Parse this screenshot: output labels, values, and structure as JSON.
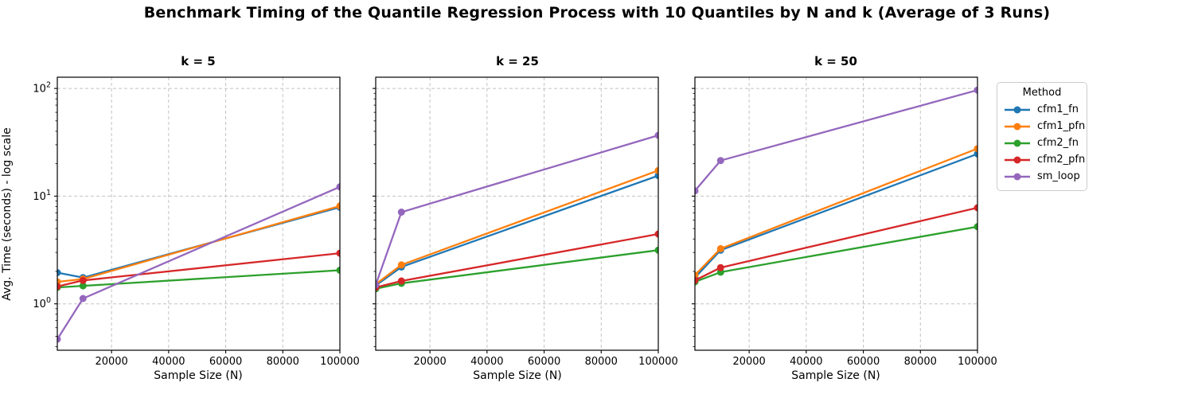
{
  "chart_data": {
    "type": "line",
    "suptitle": "Benchmark Timing of the Quantile Regression Process with 10 Quantiles by N and k (Average of 3 Runs)",
    "xlabel": "Sample Size (N)",
    "ylabel": "Avg. Time (seconds) - log scale",
    "yscale": "log",
    "x": [
      1000,
      10000,
      100000
    ],
    "xlim": [
      1000,
      100000
    ],
    "ylim": [
      0.37,
      128
    ],
    "xticks": [
      20000,
      40000,
      60000,
      80000,
      100000
    ],
    "yticks": [
      1,
      10,
      100
    ],
    "grid": true,
    "grid_style": "dashed",
    "legend": {
      "title": "Method",
      "position": "outside-upper-right"
    },
    "methods": [
      {
        "name": "cfm1_fn",
        "color": "#1f77b4"
      },
      {
        "name": "cfm1_pfn",
        "color": "#ff7f0e"
      },
      {
        "name": "cfm2_fn",
        "color": "#2ca02c"
      },
      {
        "name": "cfm2_pfn",
        "color": "#d62728"
      },
      {
        "name": "sm_loop",
        "color": "#9467bd"
      }
    ],
    "subplots": [
      {
        "title": "k = 5",
        "series": [
          {
            "name": "cfm1_fn",
            "values": [
              1.95,
              1.75,
              7.9
            ]
          },
          {
            "name": "cfm1_pfn",
            "values": [
              1.6,
              1.7,
              8.1
            ]
          },
          {
            "name": "cfm2_fn",
            "values": [
              1.42,
              1.47,
              2.05
            ]
          },
          {
            "name": "cfm2_pfn",
            "values": [
              1.45,
              1.65,
              2.95
            ]
          },
          {
            "name": "sm_loop",
            "values": [
              0.47,
              1.12,
              12.2
            ]
          }
        ]
      },
      {
        "title": "k = 25",
        "series": [
          {
            "name": "cfm1_fn",
            "values": [
              1.48,
              2.2,
              15.5
            ]
          },
          {
            "name": "cfm1_pfn",
            "values": [
              1.52,
              2.3,
              17.3
            ]
          },
          {
            "name": "cfm2_fn",
            "values": [
              1.38,
              1.55,
              3.15
            ]
          },
          {
            "name": "cfm2_pfn",
            "values": [
              1.42,
              1.63,
              4.45
            ]
          },
          {
            "name": "sm_loop",
            "values": [
              1.5,
              7.1,
              36.7
            ]
          }
        ]
      },
      {
        "title": "k = 50",
        "series": [
          {
            "name": "cfm1_fn",
            "values": [
              1.75,
              3.15,
              24.7
            ]
          },
          {
            "name": "cfm1_pfn",
            "values": [
              1.85,
              3.25,
              27.6
            ]
          },
          {
            "name": "cfm2_fn",
            "values": [
              1.6,
              1.97,
              5.2
            ]
          },
          {
            "name": "cfm2_pfn",
            "values": [
              1.65,
              2.17,
              7.8
            ]
          },
          {
            "name": "sm_loop",
            "values": [
              11.2,
              21.4,
              96.5
            ]
          }
        ]
      }
    ]
  }
}
